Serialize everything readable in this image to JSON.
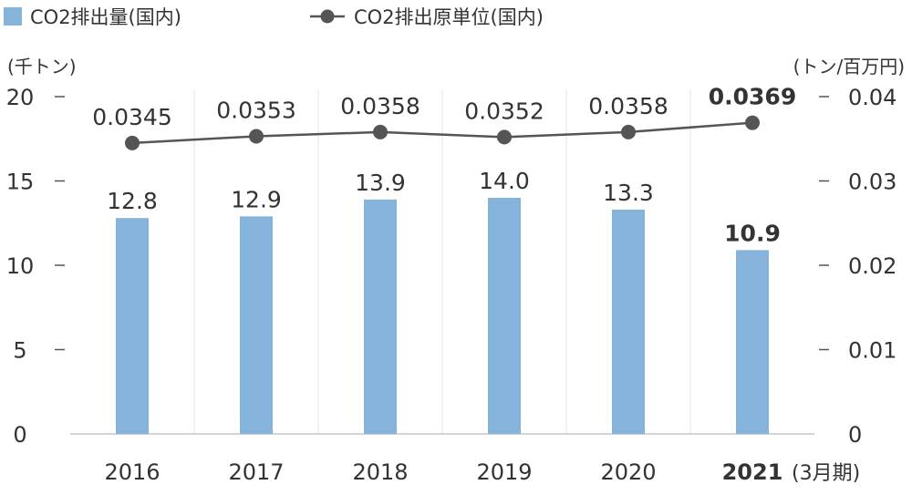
{
  "chart_data": {
    "type": "bar",
    "categories": [
      "2016",
      "2017",
      "2018",
      "2019",
      "2020",
      "2021"
    ],
    "category_suffix": "(3月期)",
    "highlight_index": 5,
    "legend": {
      "placement": "top-left",
      "bar_label": "CO2排出量(国内)",
      "line_label": "CO2排出原単位(国内)"
    },
    "series": [
      {
        "type": "bar",
        "axis": "left",
        "color": "#85b3da",
        "values": [
          12.8,
          12.9,
          13.9,
          14.0,
          13.3,
          10.9
        ],
        "labels": [
          "12.8",
          "12.9",
          "13.9",
          "14.0",
          "13.3",
          "10.9"
        ]
      },
      {
        "type": "line",
        "axis": "right",
        "color": "#555555",
        "values": [
          0.0345,
          0.0353,
          0.0358,
          0.0352,
          0.0358,
          0.0369
        ],
        "labels": [
          "0.0345",
          "0.0353",
          "0.0358",
          "0.0352",
          "0.0358",
          "0.0369"
        ]
      }
    ],
    "y_left": {
      "unit": "(千トン)",
      "range": [
        0,
        20
      ],
      "ticks": [
        0,
        5,
        10,
        15,
        20
      ],
      "tick_labels": [
        "0",
        "5",
        "10",
        "15",
        "20"
      ]
    },
    "y_right": {
      "unit": "(トン/百万円)",
      "range": [
        0,
        0.04
      ],
      "ticks": [
        0,
        0.01,
        0.02,
        0.03,
        0.04
      ],
      "tick_labels": [
        "0",
        "0.01",
        "0.02",
        "0.03",
        "0.04"
      ]
    },
    "grid": "vertical"
  }
}
